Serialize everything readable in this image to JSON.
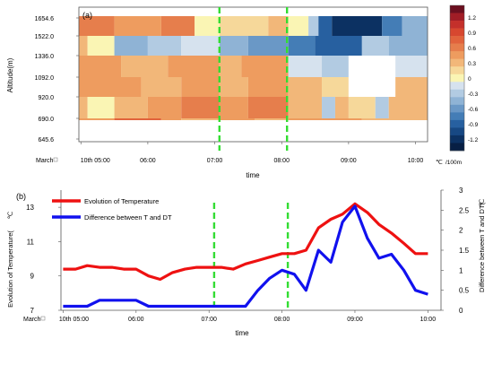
{
  "chart_data": [
    {
      "type": "heatmap",
      "panel_label": "(a)",
      "ylabel": "Altitude(m)",
      "xlabel": "time",
      "x_prefix": "March",
      "x_ticks": [
        "10th 05:00",
        "06:00",
        "07:00",
        "08:00",
        "09:00",
        "10:00"
      ],
      "x_tick_hours": [
        5,
        6,
        7,
        8,
        9,
        10
      ],
      "xlim_hours": [
        4.97,
        10.18
      ],
      "y_ticks": [
        "1654.6",
        "1522.0",
        "1336.0",
        "1092.0",
        "920.0",
        "690.0",
        "645.6"
      ],
      "grid": false,
      "dashed_time_markers_hours": [
        7.07,
        8.08
      ],
      "colorbar": {
        "levels": [
          1.35,
          1.2,
          1.05,
          0.9,
          0.75,
          0.6,
          0.45,
          0.3,
          0.15,
          0.0,
          -0.15,
          -0.3,
          -0.45,
          -0.6,
          -0.75,
          -0.9,
          -1.05,
          -1.2,
          -1.35
        ],
        "labels": [
          "1.2",
          "0.9",
          "0.6",
          "0.3",
          "0",
          "-0.3",
          "-0.6",
          "-0.9",
          "-1.2"
        ],
        "label_values": [
          1.2,
          0.9,
          0.6,
          0.3,
          0,
          -0.3,
          -0.6,
          -0.9,
          -1.2
        ],
        "colors": [
          "#6b0f1f",
          "#a11d26",
          "#c4302b",
          "#d7472f",
          "#e1633c",
          "#e67e4c",
          "#ee9c5f",
          "#f2b779",
          "#f6d89a",
          "#faf5b4",
          "#d6e2ee",
          "#b2cbe2",
          "#8fb3d5",
          "#6a98c6",
          "#447db6",
          "#2760a0",
          "#174883",
          "#0c3162",
          "#071f44"
        ],
        "unit": "℃",
        "unit_suffix": "/100m"
      },
      "rows": [
        {
          "bottom": 1522.0,
          "top": 1654.6,
          "segments": [
            [
              4.97,
              5.5,
              0.6
            ],
            [
              5.5,
              6.2,
              0.45
            ],
            [
              6.2,
              6.7,
              0.6
            ],
            [
              6.7,
              7.07,
              0.0
            ],
            [
              7.07,
              7.8,
              0.15
            ],
            [
              7.8,
              8.1,
              0.3
            ],
            [
              8.1,
              8.4,
              0.0
            ],
            [
              8.4,
              8.55,
              -0.3
            ],
            [
              8.55,
              8.75,
              -0.9
            ],
            [
              8.75,
              9.5,
              -1.2
            ],
            [
              9.5,
              9.8,
              -0.75
            ],
            [
              9.8,
              10.18,
              -0.45
            ]
          ]
        },
        {
          "bottom": 1336.0,
          "top": 1522.0,
          "segments": [
            [
              4.97,
              5.1,
              0.3
            ],
            [
              5.1,
              5.5,
              0.0
            ],
            [
              5.5,
              6.0,
              -0.45
            ],
            [
              6.0,
              6.5,
              -0.3
            ],
            [
              6.5,
              7.07,
              -0.15
            ],
            [
              7.07,
              7.5,
              -0.45
            ],
            [
              7.5,
              8.1,
              -0.6
            ],
            [
              8.1,
              8.5,
              -0.75
            ],
            [
              8.5,
              9.2,
              -0.9
            ],
            [
              9.2,
              9.6,
              -0.3
            ],
            [
              9.6,
              10.18,
              -0.45
            ]
          ]
        },
        {
          "bottom": 1092.0,
          "top": 1336.0,
          "segments": [
            [
              4.97,
              5.6,
              0.45
            ],
            [
              5.6,
              6.3,
              0.3
            ],
            [
              6.3,
              7.07,
              0.45
            ],
            [
              7.07,
              7.4,
              0.3
            ],
            [
              7.4,
              8.1,
              0.45
            ],
            [
              8.1,
              8.6,
              -0.15
            ],
            [
              8.6,
              9.0,
              -0.3
            ],
            [
              9.0,
              9.7,
              null
            ],
            [
              9.7,
              10.18,
              -0.15
            ]
          ]
        },
        {
          "bottom": 920.0,
          "top": 1092.0,
          "segments": [
            [
              4.97,
              5.9,
              0.45
            ],
            [
              5.9,
              6.5,
              0.3
            ],
            [
              6.5,
              7.07,
              0.45
            ],
            [
              7.07,
              7.5,
              0.3
            ],
            [
              7.5,
              8.1,
              0.45
            ],
            [
              8.1,
              8.6,
              0.3
            ],
            [
              8.6,
              9.0,
              0.15
            ],
            [
              9.0,
              9.7,
              null
            ],
            [
              9.7,
              10.18,
              0.3
            ]
          ]
        },
        {
          "bottom": 690.0,
          "top": 920.0,
          "segments": [
            [
              4.97,
              5.1,
              0.3
            ],
            [
              5.1,
              5.5,
              0.0
            ],
            [
              5.5,
              6.0,
              0.3
            ],
            [
              6.0,
              6.5,
              0.45
            ],
            [
              6.5,
              7.07,
              0.6
            ],
            [
              7.07,
              7.5,
              0.45
            ],
            [
              7.5,
              8.1,
              0.6
            ],
            [
              8.1,
              8.6,
              0.3
            ],
            [
              8.6,
              8.8,
              -0.3
            ],
            [
              8.8,
              9.0,
              0.3
            ],
            [
              9.0,
              9.4,
              0.15
            ],
            [
              9.4,
              9.6,
              -0.3
            ],
            [
              9.6,
              10.18,
              0.3
            ]
          ]
        },
        {
          "bottom": 645.6,
          "top": 690.0,
          "segments": [
            [
              4.97,
              5.5,
              0.45
            ],
            [
              5.5,
              6.2,
              0.75
            ],
            [
              6.2,
              6.5,
              0.45
            ],
            [
              6.5,
              7.07,
              0.3
            ],
            [
              7.07,
              7.6,
              0.45
            ],
            [
              7.6,
              8.1,
              0.3
            ],
            [
              8.1,
              8.6,
              0.45
            ],
            [
              8.6,
              9.2,
              0.45
            ],
            [
              9.2,
              10.18,
              0.3
            ]
          ]
        }
      ]
    },
    {
      "type": "line",
      "panel_label": "(b)",
      "xlabel": "time",
      "x_prefix": "March",
      "x_ticks": [
        "10th 05:00",
        "06:00",
        "07:00",
        "08:00",
        "09:00",
        "10:00"
      ],
      "x_tick_hours": [
        5,
        6,
        7,
        8,
        9,
        10
      ],
      "xlim_hours": [
        4.97,
        10.18
      ],
      "ylabel_left": "Evolution of Temperature(",
      "ylabel_left_unit": "℃",
      "ylabel_right": "Difference between T and DT(",
      "ylabel_right_unit": "℃",
      "ylim_left": [
        7,
        14
      ],
      "y_ticks_left": [
        7,
        9,
        11,
        13
      ],
      "ylim_right": [
        0,
        3
      ],
      "y_ticks_right": [
        "0",
        "0.5",
        "1",
        "1.5",
        "2",
        "2.5",
        "3"
      ],
      "grid": false,
      "legend_position": "top-left",
      "dashed_time_markers_hours": [
        7.07,
        8.08
      ],
      "series": [
        {
          "name": "Evolution of Temperature",
          "color": "#ee1111",
          "axis": "left",
          "x": [
            5.0,
            5.17,
            5.33,
            5.5,
            5.67,
            5.83,
            6.0,
            6.17,
            6.33,
            6.5,
            6.67,
            6.83,
            7.0,
            7.17,
            7.33,
            7.5,
            7.67,
            7.83,
            8.0,
            8.17,
            8.33,
            8.5,
            8.67,
            8.83,
            9.0,
            9.17,
            9.33,
            9.5,
            9.67,
            9.83,
            10.0
          ],
          "values": [
            9.4,
            9.4,
            9.6,
            9.5,
            9.5,
            9.4,
            9.4,
            9.0,
            8.8,
            9.2,
            9.4,
            9.5,
            9.5,
            9.5,
            9.4,
            9.7,
            9.9,
            10.1,
            10.3,
            10.3,
            10.5,
            11.8,
            12.3,
            12.6,
            13.2,
            12.7,
            12.0,
            11.5,
            10.9,
            10.3,
            10.3
          ]
        },
        {
          "name": "Difference between T and DT",
          "color": "#1111ee",
          "axis": "right",
          "x": [
            5.0,
            5.17,
            5.33,
            5.5,
            5.67,
            5.83,
            6.0,
            6.17,
            6.33,
            6.5,
            6.67,
            6.83,
            7.0,
            7.17,
            7.33,
            7.5,
            7.67,
            7.83,
            8.0,
            8.17,
            8.33,
            8.5,
            8.67,
            8.83,
            9.0,
            9.17,
            9.33,
            9.5,
            9.67,
            9.83,
            10.0
          ],
          "values": [
            0.1,
            0.1,
            0.1,
            0.25,
            0.25,
            0.25,
            0.25,
            0.1,
            0.1,
            0.1,
            0.1,
            0.1,
            0.1,
            0.1,
            0.1,
            0.1,
            0.5,
            0.8,
            1.0,
            0.9,
            0.5,
            1.5,
            1.2,
            2.2,
            2.6,
            1.8,
            1.3,
            1.4,
            1.0,
            0.5,
            0.4
          ]
        }
      ]
    }
  ]
}
